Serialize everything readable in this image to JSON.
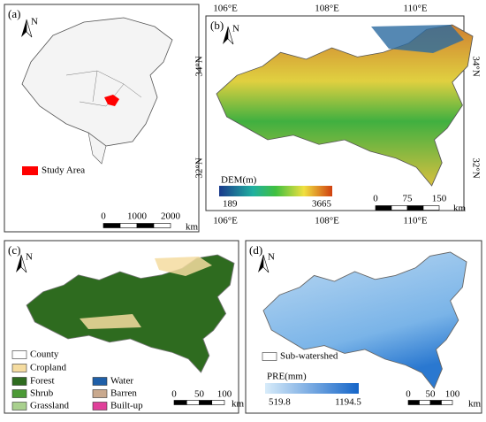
{
  "panels": [
    {
      "label": "(a)",
      "north": "N",
      "legend": [
        {
          "name": "Study Area",
          "color": "#ff0000"
        }
      ],
      "scale": {
        "ticks": [
          0,
          1000,
          2000
        ],
        "unit": "km"
      }
    },
    {
      "label": "(b)",
      "north": "N",
      "lon_labels": [
        "106°E",
        "108°E",
        "110°E"
      ],
      "lat_labels": [
        "34°N",
        "32°N"
      ],
      "colorbar": {
        "title": "DEM(m)",
        "min": 189,
        "max": 3665
      },
      "scale": {
        "ticks": [
          0,
          75,
          150
        ],
        "unit": "km"
      }
    },
    {
      "label": "(c)",
      "north": "N",
      "legend": [
        {
          "name": "County",
          "color": "#ffffff"
        },
        {
          "name": "Cropland",
          "color": "#f5dca0"
        },
        {
          "name": "Forest",
          "color": "#2e6b1f"
        },
        {
          "name": "Shrub",
          "color": "#4c9a36"
        },
        {
          "name": "Grassland",
          "color": "#a9d08e"
        },
        {
          "name": "Water",
          "color": "#1f5fa8"
        },
        {
          "name": "Barren",
          "color": "#c9a98e"
        },
        {
          "name": "Built-up",
          "color": "#e0409a"
        }
      ],
      "scale": {
        "ticks": [
          0,
          50,
          100
        ],
        "unit": "km"
      }
    },
    {
      "label": "(d)",
      "north": "N",
      "legend": [
        {
          "name": "Sub-watershed",
          "color": "#ffffff"
        }
      ],
      "colorbar": {
        "title": "PRE(mm)",
        "min": 519.8,
        "max": 1194.5
      },
      "scale": {
        "ticks": [
          0,
          50,
          100
        ],
        "unit": "km"
      }
    }
  ]
}
